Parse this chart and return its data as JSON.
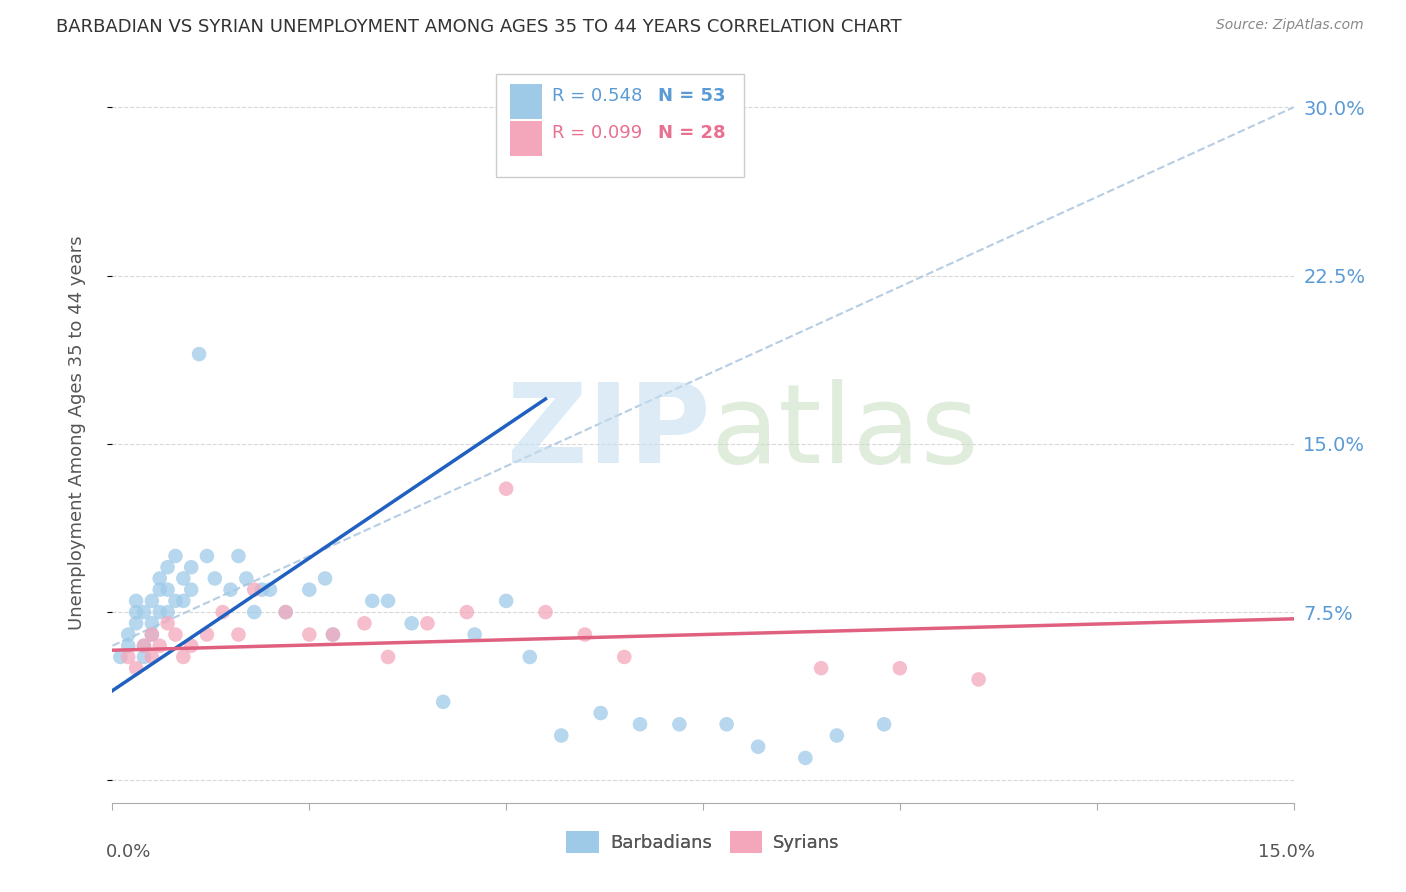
{
  "title": "BARBADIAN VS SYRIAN UNEMPLOYMENT AMONG AGES 35 TO 44 YEARS CORRELATION CHART",
  "source": "Source: ZipAtlas.com",
  "ylabel": "Unemployment Among Ages 35 to 44 years",
  "xlim": [
    0.0,
    0.15
  ],
  "ylim": [
    -0.01,
    0.32
  ],
  "yticks": [
    0.0,
    0.075,
    0.15,
    0.225,
    0.3
  ],
  "ytick_labels": [
    "",
    "7.5%",
    "15.0%",
    "22.5%",
    "30.0%"
  ],
  "background_color": "#ffffff",
  "barbadian_color": "#9ecae8",
  "syrian_color": "#f4a7bb",
  "barbadian_line_color": "#2060c0",
  "syrian_line_color": "#e06080",
  "dashed_line_color": "#aec8e0",
  "legend_R_barbadian": "R = 0.548",
  "legend_N_barbadian": "N = 53",
  "legend_R_syrian": "R = 0.099",
  "legend_N_syrian": "N = 28",
  "barbadian_scatter_x": [
    0.001,
    0.002,
    0.002,
    0.003,
    0.003,
    0.003,
    0.004,
    0.004,
    0.004,
    0.005,
    0.005,
    0.005,
    0.006,
    0.006,
    0.006,
    0.007,
    0.007,
    0.007,
    0.008,
    0.008,
    0.009,
    0.009,
    0.01,
    0.01,
    0.011,
    0.012,
    0.013,
    0.015,
    0.016,
    0.017,
    0.018,
    0.019,
    0.02,
    0.022,
    0.025,
    0.027,
    0.028,
    0.033,
    0.035,
    0.038,
    0.042,
    0.046,
    0.05,
    0.053,
    0.057,
    0.062,
    0.067,
    0.072,
    0.078,
    0.082,
    0.088,
    0.092,
    0.098
  ],
  "barbadian_scatter_y": [
    0.055,
    0.065,
    0.06,
    0.075,
    0.07,
    0.08,
    0.075,
    0.06,
    0.055,
    0.08,
    0.07,
    0.065,
    0.09,
    0.085,
    0.075,
    0.095,
    0.085,
    0.075,
    0.1,
    0.08,
    0.09,
    0.08,
    0.095,
    0.085,
    0.19,
    0.1,
    0.09,
    0.085,
    0.1,
    0.09,
    0.075,
    0.085,
    0.085,
    0.075,
    0.085,
    0.09,
    0.065,
    0.08,
    0.08,
    0.07,
    0.035,
    0.065,
    0.08,
    0.055,
    0.02,
    0.03,
    0.025,
    0.025,
    0.025,
    0.015,
    0.01,
    0.02,
    0.025
  ],
  "syrian_scatter_x": [
    0.002,
    0.003,
    0.004,
    0.005,
    0.005,
    0.006,
    0.007,
    0.008,
    0.009,
    0.01,
    0.012,
    0.014,
    0.016,
    0.018,
    0.022,
    0.025,
    0.028,
    0.032,
    0.035,
    0.04,
    0.045,
    0.05,
    0.055,
    0.06,
    0.065,
    0.09,
    0.1,
    0.11
  ],
  "syrian_scatter_y": [
    0.055,
    0.05,
    0.06,
    0.065,
    0.055,
    0.06,
    0.07,
    0.065,
    0.055,
    0.06,
    0.065,
    0.075,
    0.065,
    0.085,
    0.075,
    0.065,
    0.065,
    0.07,
    0.055,
    0.07,
    0.075,
    0.13,
    0.075,
    0.065,
    0.055,
    0.05,
    0.05,
    0.045
  ],
  "barbadian_trendline_x": [
    0.0,
    0.055
  ],
  "barbadian_trendline_y": [
    0.04,
    0.17
  ],
  "syrian_trendline_x": [
    0.0,
    0.15
  ],
  "syrian_trendline_y": [
    0.058,
    0.072
  ],
  "dashed_line_x": [
    0.0,
    0.15
  ],
  "dashed_line_y": [
    0.06,
    0.3
  ],
  "grid_color": "#d8d8d8",
  "tick_color": "#5b9bd5",
  "ylabel_color": "#555555",
  "title_color": "#333333",
  "source_color": "#888888"
}
